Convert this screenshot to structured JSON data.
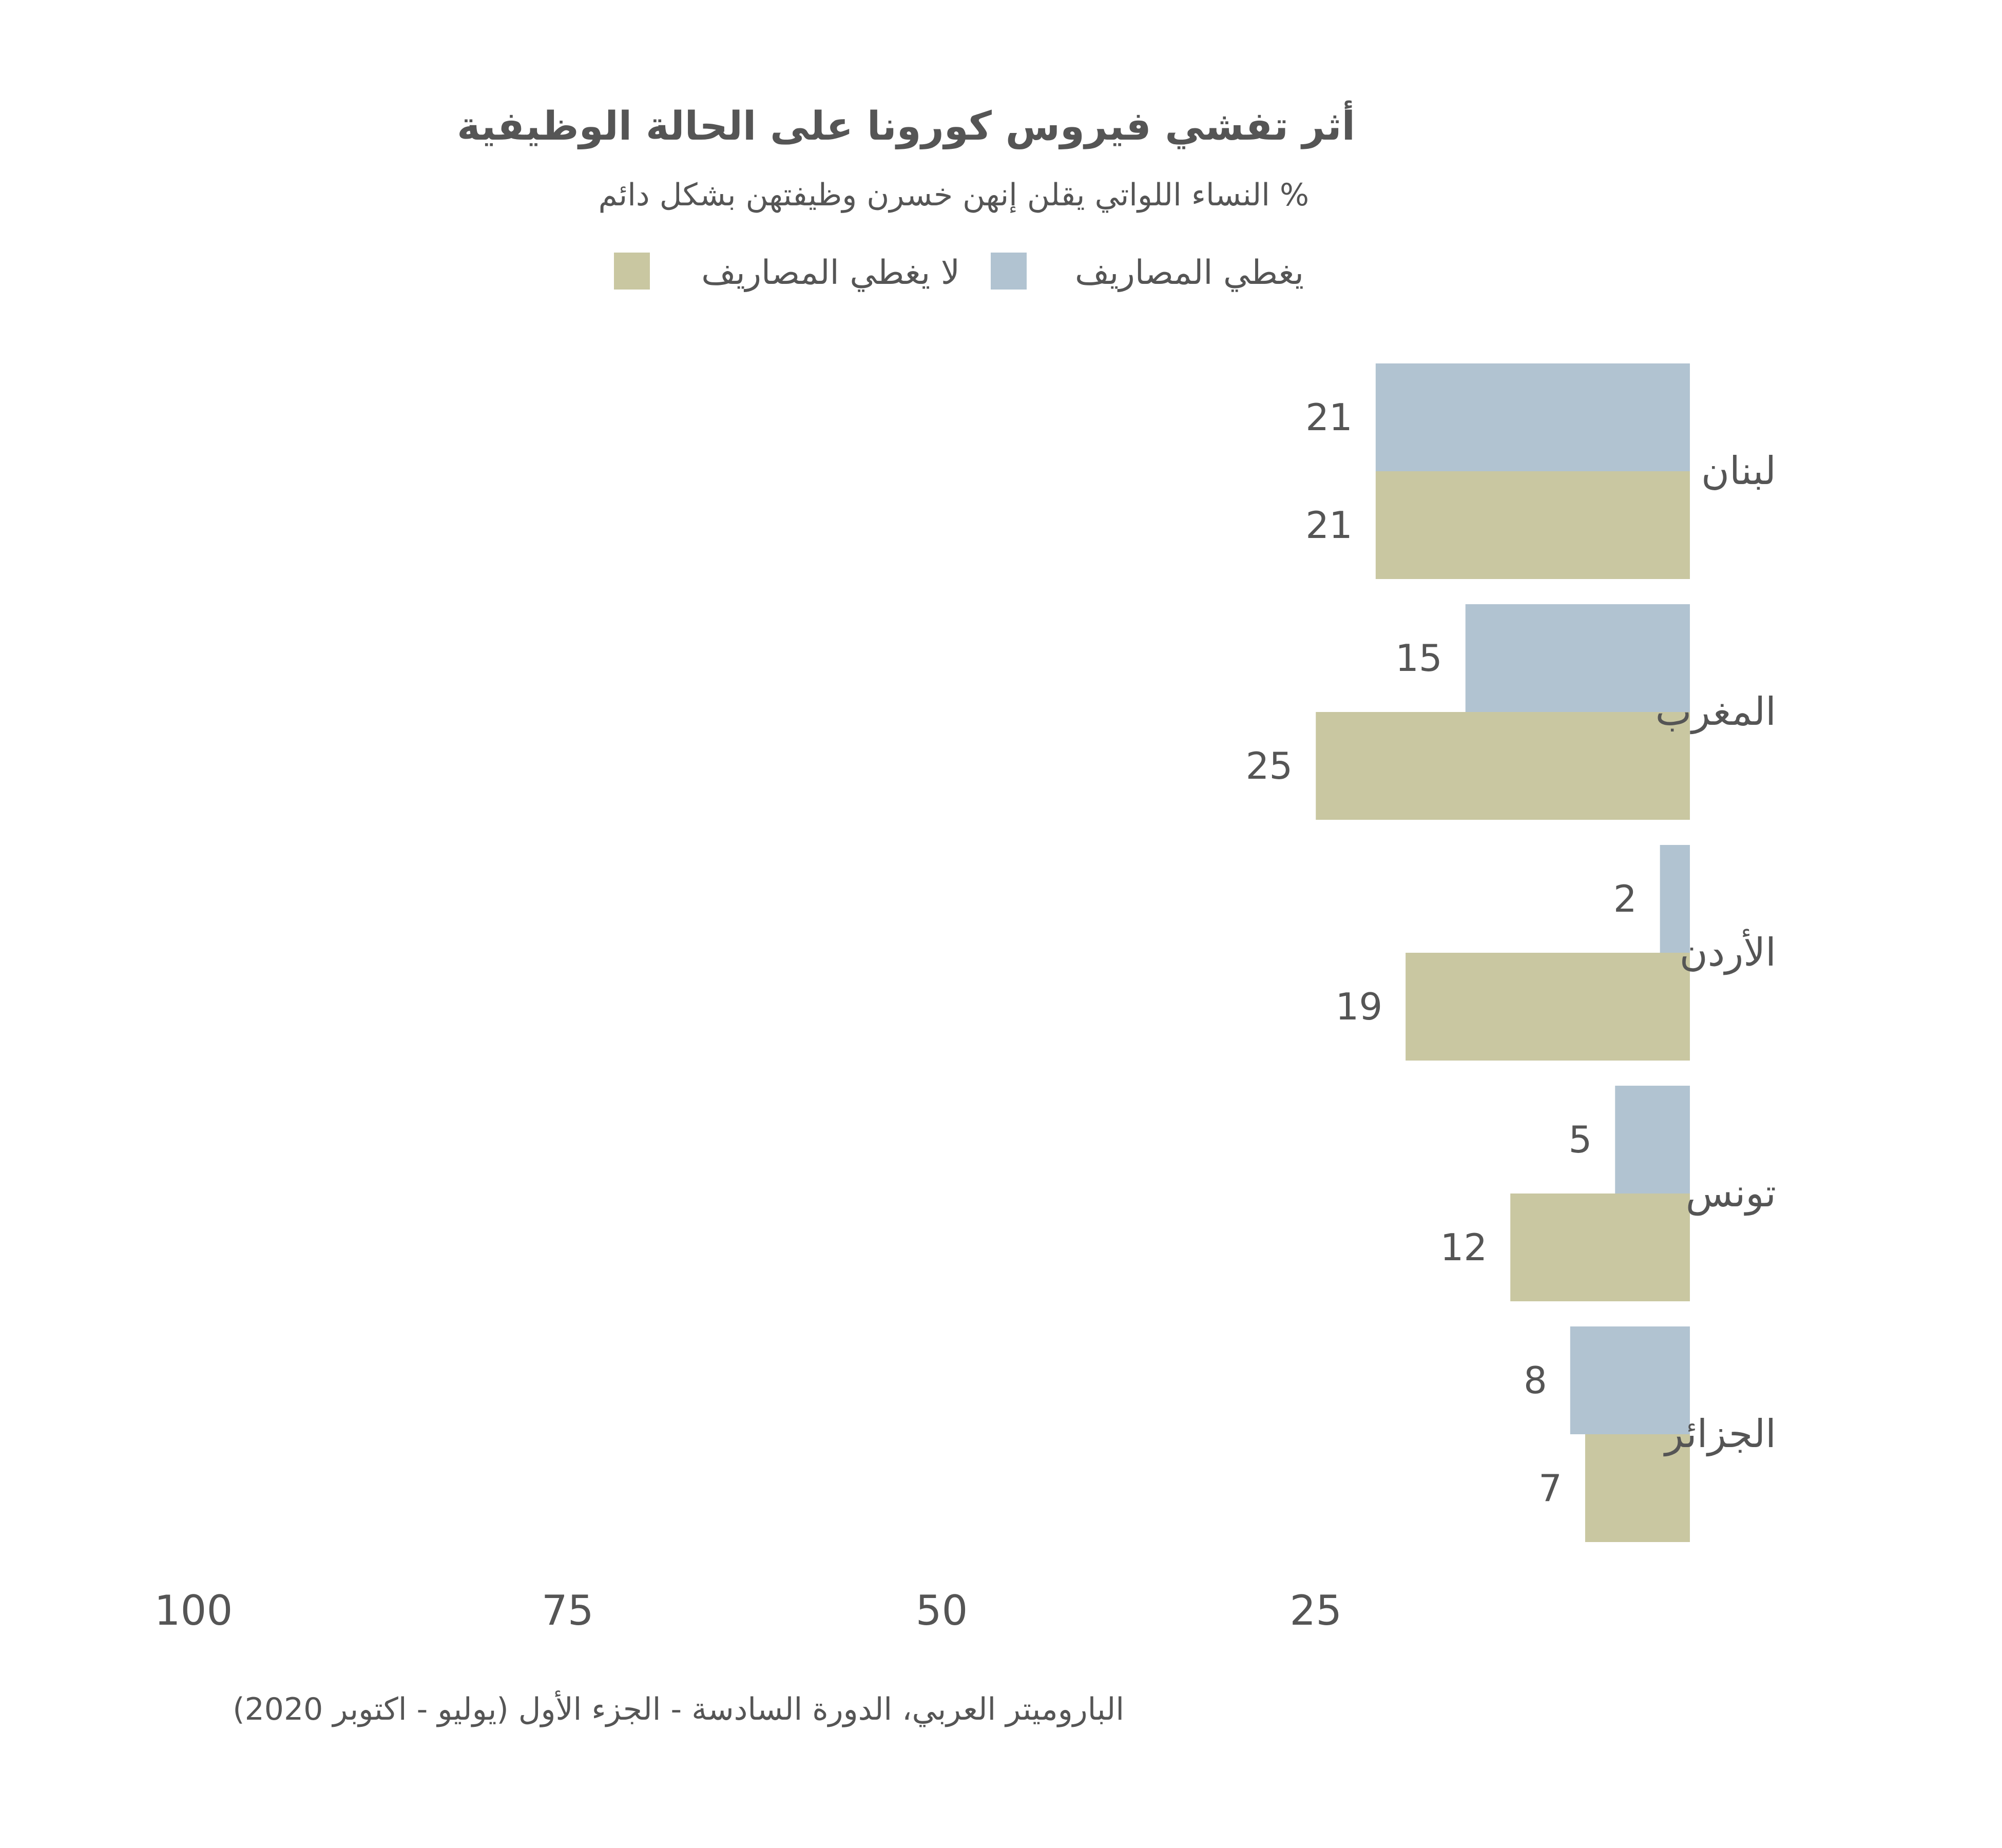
{
  "chart_data": {
    "type": "bar",
    "orientation": "horizontal",
    "title": "أثر تفشي فيروس كورونا على الحالة الوظيفية",
    "subtitle": "% النساء اللواتي يقلن إنهن خسرن وظيفتهن بشكل دائم",
    "categories": [
      "لبنان",
      "المغرب",
      "الأردن",
      "تونس",
      "الجزائر"
    ],
    "series": [
      {
        "name": "يغطي المصاريف",
        "color": "#b1c3d1",
        "values": [
          21,
          15,
          2,
          5,
          8
        ]
      },
      {
        "name": "لا يغطي المصاريف",
        "color": "#c9c7a1",
        "values": [
          21,
          25,
          19,
          12,
          7
        ]
      }
    ],
    "x_ticks": [
      "100",
      "75",
      "50",
      "25"
    ],
    "x_reversed": true,
    "xlim": [
      0,
      100
    ],
    "legend_position": "top",
    "grid": false,
    "source": "الباروميتر العربي، الدورة السادسة - الجزء الأول (يوليو - اكتوبر 2020)"
  }
}
